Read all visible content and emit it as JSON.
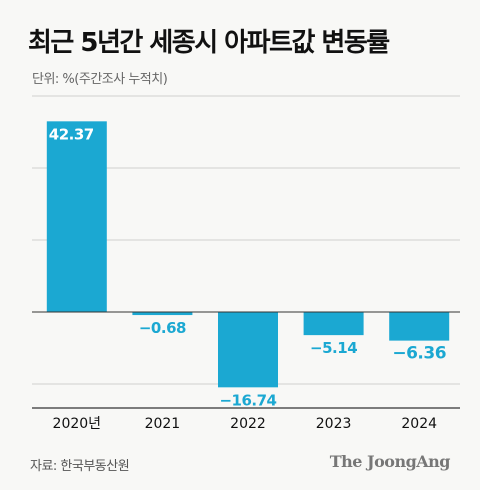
{
  "title": "최근 5년간 세종시 아파트값 변동률",
  "unit": "단위: %(주간조사 누적치)",
  "source": "자료: 한국부동산원",
  "brand": "The JoongAng",
  "colors": {
    "bar": "#1ba8d2",
    "value_label": "#1ba8d2",
    "grid": "#cfcfcf",
    "axis": "#333333",
    "text": "#111111"
  },
  "chart_data": {
    "type": "bar",
    "categories": [
      "2020년",
      "2021",
      "2022",
      "2023",
      "2024"
    ],
    "values": [
      42.37,
      -0.68,
      -16.74,
      -5.14,
      -6.36
    ],
    "value_labels": [
      "42.37",
      "−0.68",
      "−16.74",
      "−5.14",
      "−6.36"
    ],
    "ylim": [
      -24,
      48
    ],
    "grid": true,
    "gridlines": [
      -16,
      16,
      32,
      48
    ]
  }
}
